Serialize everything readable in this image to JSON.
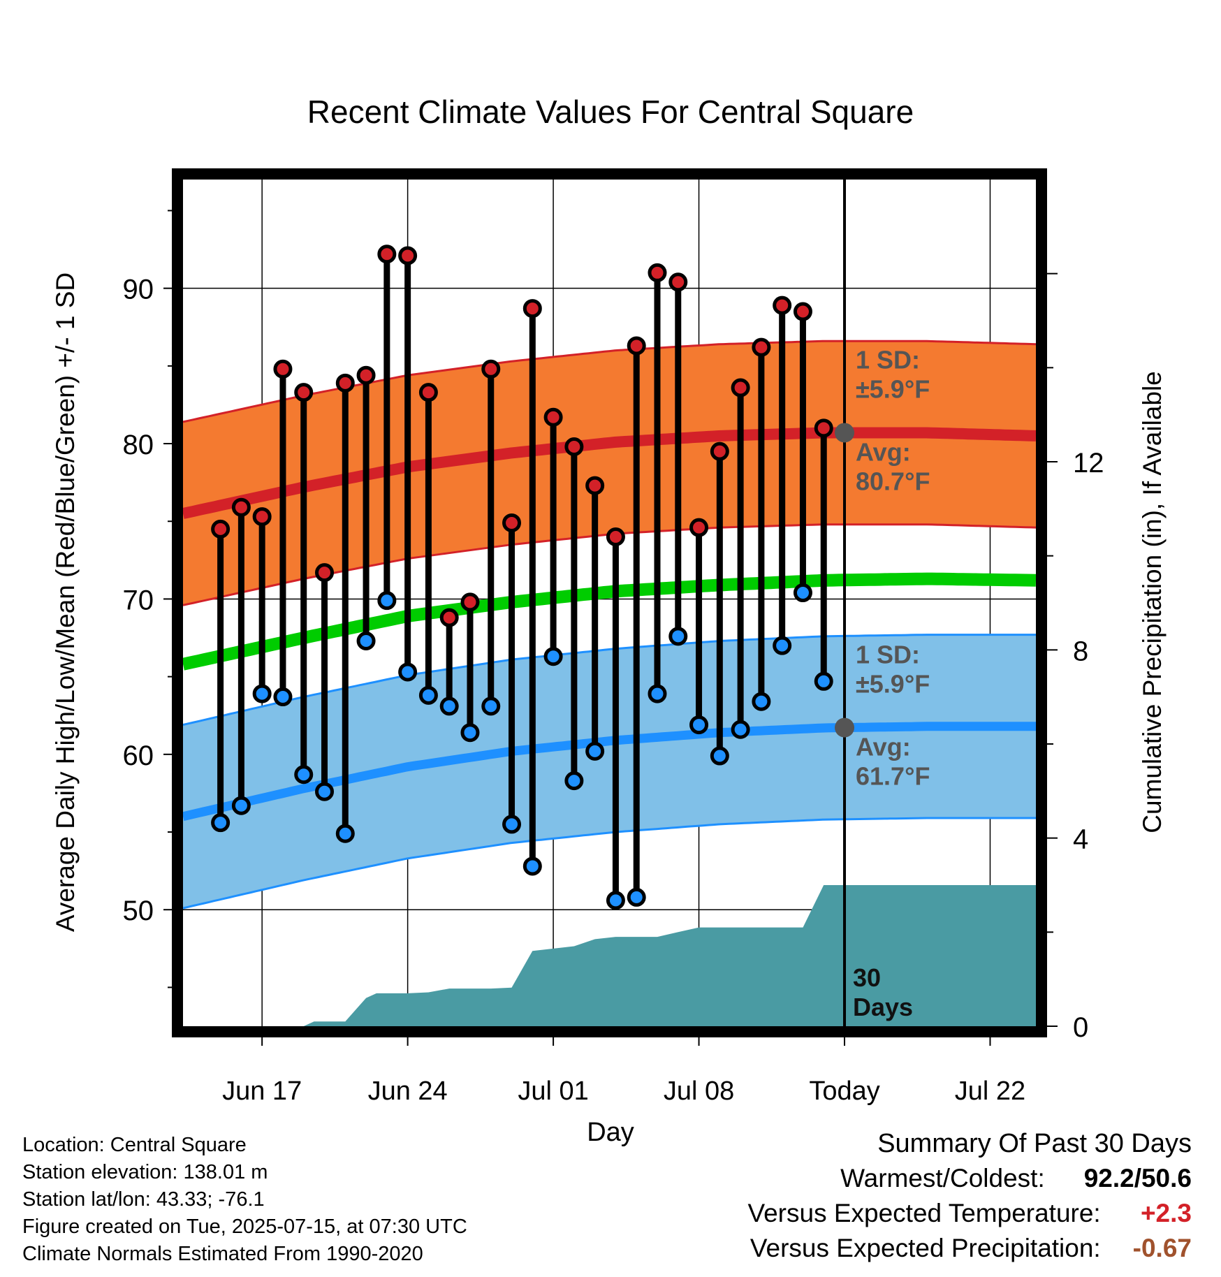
{
  "chart_data": {
    "type": "range",
    "title": "Recent Climate Values For Central Square",
    "xlabel": "Day",
    "ylabel": "Average Daily High/Low/Mean (Red/Blue/Green) +/- 1 SD",
    "ylabel_right": "Cumulative Precipitation (in), If Available",
    "xlim": [
      -0.8,
      40.2
    ],
    "ylim": [
      42.5,
      97
    ],
    "y2lim": [
      0,
      18
    ],
    "x_ticks": [
      {
        "x": 3,
        "label": "Jun 17"
      },
      {
        "x": 10,
        "label": "Jun 24"
      },
      {
        "x": 17,
        "label": "Jul 01"
      },
      {
        "x": 24,
        "label": "Jul 08"
      },
      {
        "x": 31,
        "label": "Today"
      },
      {
        "x": 38,
        "label": "Jul 22"
      }
    ],
    "y_ticks": [
      50,
      60,
      70,
      80,
      90
    ],
    "y2_ticks": [
      0,
      4,
      8,
      12
    ],
    "grid": true,
    "today_x": 31,
    "observations": {
      "x": [
        1,
        2,
        3,
        4,
        5,
        6,
        7,
        8,
        9,
        10,
        11,
        12,
        13,
        14,
        15,
        16,
        17,
        18,
        19,
        20,
        21,
        22,
        23,
        24,
        25,
        26,
        27,
        28,
        29,
        30
      ],
      "high": [
        74.5,
        75.9,
        75.3,
        84.8,
        83.3,
        71.7,
        83.9,
        84.4,
        92.2,
        92.1,
        83.3,
        68.8,
        69.8,
        84.8,
        74.9,
        88.7,
        81.7,
        79.8,
        77.3,
        74.0,
        86.3,
        91.0,
        90.4,
        74.6,
        79.5,
        83.6,
        86.2,
        88.9,
        88.5,
        81.0
      ],
      "low": [
        55.6,
        56.7,
        63.9,
        63.7,
        58.7,
        57.6,
        54.9,
        67.3,
        69.9,
        65.3,
        63.8,
        63.1,
        61.4,
        63.1,
        55.5,
        52.8,
        66.3,
        58.3,
        60.2,
        50.6,
        50.8,
        63.9,
        67.6,
        61.9,
        59.9,
        61.6,
        63.4,
        67.0,
        70.4,
        64.7
      ]
    },
    "normals": {
      "x": [
        -0.8,
        5,
        10,
        15,
        20,
        25,
        30,
        35,
        40.2
      ],
      "avg_high": [
        75.5,
        77.2,
        78.5,
        79.4,
        80.1,
        80.5,
        80.7,
        80.7,
        80.5
      ],
      "avg_low": [
        56.0,
        57.8,
        59.2,
        60.2,
        60.9,
        61.4,
        61.7,
        61.8,
        61.8
      ],
      "avg_mean": [
        65.8,
        67.5,
        68.9,
        69.8,
        70.5,
        70.9,
        71.2,
        71.3,
        71.2
      ],
      "sd": 5.9
    },
    "precip": {
      "x": [
        -0.8,
        2,
        3,
        4,
        5,
        5.5,
        6.5,
        7,
        8,
        8.5,
        10,
        11,
        12,
        13,
        14,
        15,
        16,
        17,
        18,
        19,
        20,
        21,
        22,
        23,
        24,
        25,
        26,
        27,
        28,
        29,
        30,
        31,
        40.2
      ],
      "cumulative": [
        0,
        0,
        0,
        0,
        0,
        0.1,
        0.1,
        0.1,
        0.6,
        0.7,
        0.7,
        0.72,
        0.8,
        0.8,
        0.8,
        0.82,
        1.6,
        1.65,
        1.7,
        1.85,
        1.9,
        1.9,
        1.9,
        2.0,
        2.1,
        2.1,
        2.1,
        2.1,
        2.1,
        2.1,
        3.0,
        3.0,
        3.0
      ]
    },
    "annotations": {
      "high_sd_label": [
        "1 SD:",
        "±5.9°F"
      ],
      "high_avg_label": [
        "Avg:",
        "80.7°F"
      ],
      "low_sd_label": [
        "1 SD:",
        "±5.9°F"
      ],
      "low_avg_label": [
        "Avg:",
        "61.7°F"
      ],
      "precip_label": [
        "30",
        "Days"
      ]
    },
    "colors": {
      "high_band": "#f47a30",
      "high_line": "#d32128",
      "low_band": "#80c0e8",
      "low_line": "#1e90ff",
      "mean_line": "#00cc00",
      "precip": "#4a9ba3",
      "high_dot": "#d32128",
      "low_dot": "#1e90ff",
      "annotation": "#555555"
    }
  },
  "footer": {
    "location": "Location: Central Square",
    "elevation": "Station elevation: 138.01 m",
    "latlon": "Station lat/lon: 43.33; -76.1",
    "created": "Figure created on Tue, 2025-07-15, at 07:30 UTC",
    "normals": "Climate Normals Estimated From 1990-2020"
  },
  "summary": {
    "heading": "Summary Of Past 30 Days",
    "warmest_label": "Warmest/Coldest:",
    "warmest_value": "92.2/50.6",
    "temp_label": "Versus Expected Temperature:",
    "temp_value": "+2.3",
    "temp_color": "#d32128",
    "precip_label": "Versus Expected Precipitation:",
    "precip_value": "-0.67",
    "precip_color": "#a0522d"
  }
}
